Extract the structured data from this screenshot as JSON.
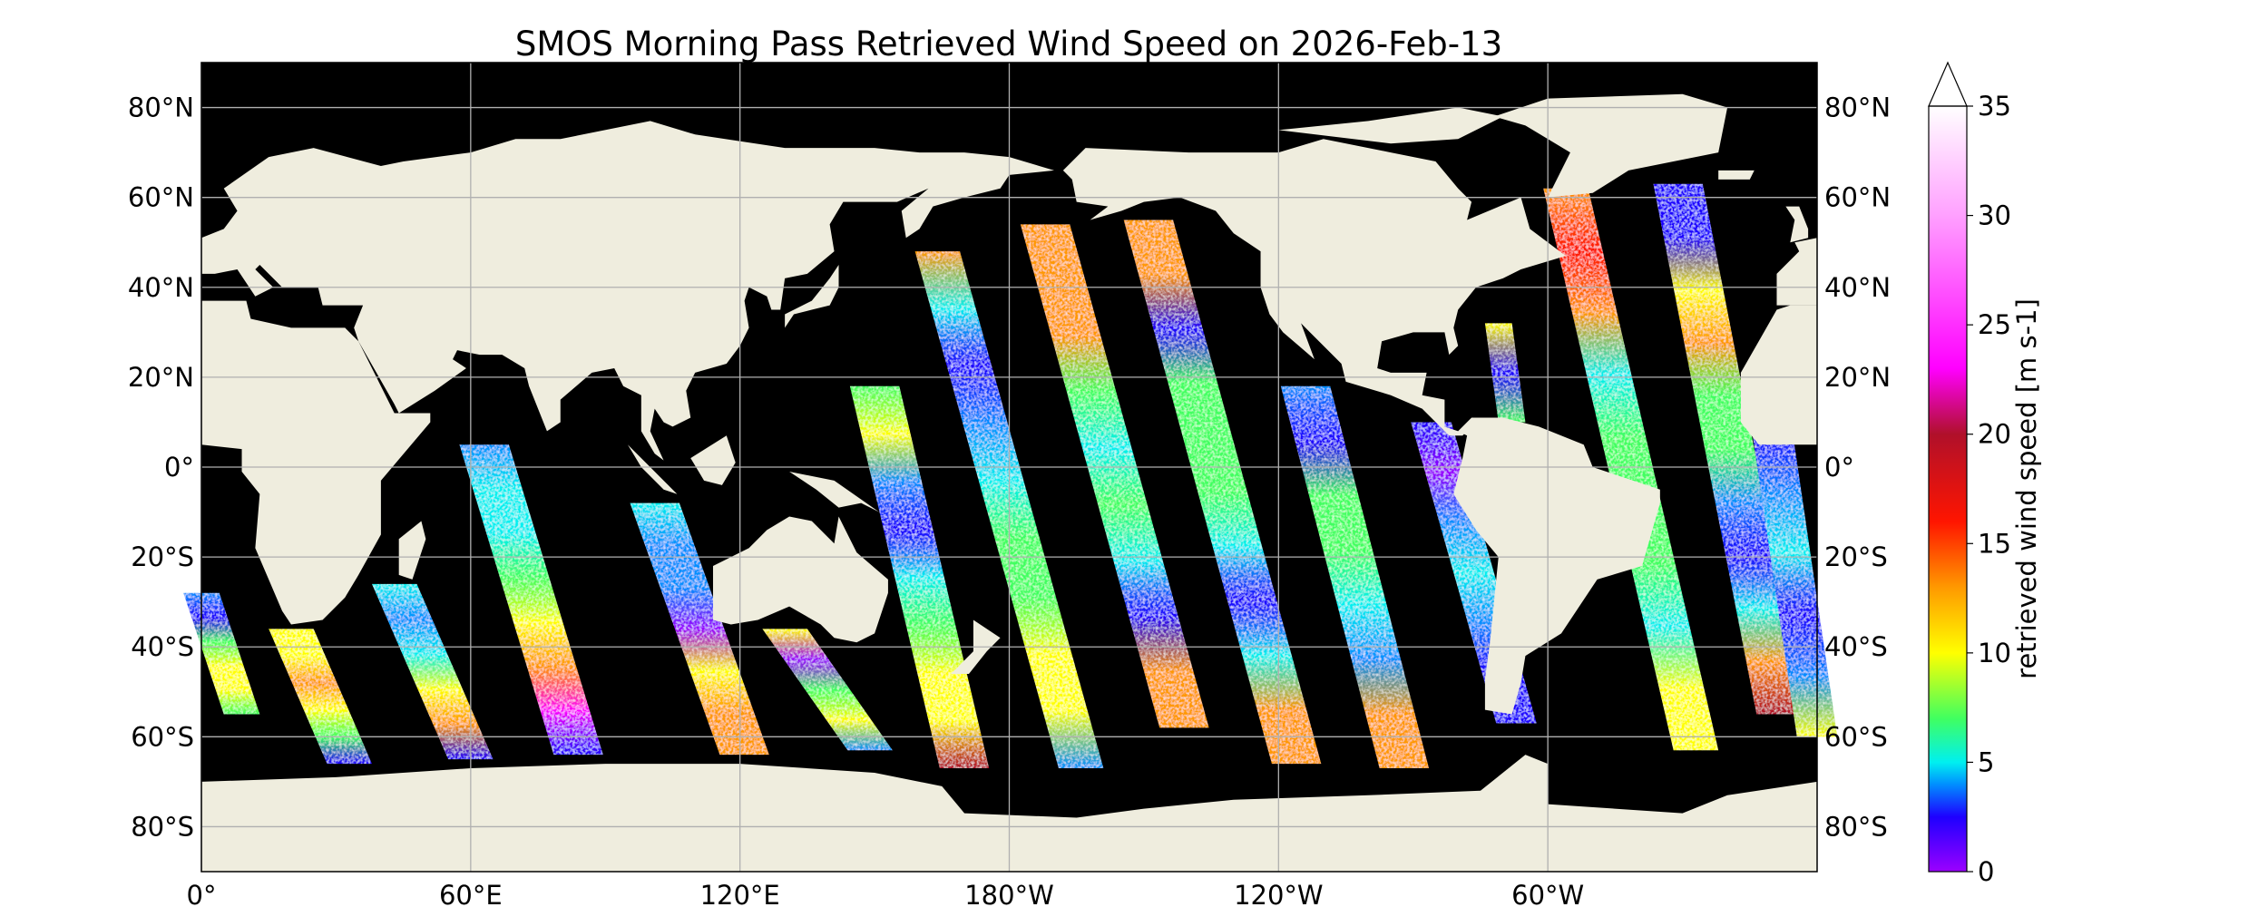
{
  "title": "SMOS Morning Pass Retrieved Wind Speed on 2026-Feb-13",
  "map": {
    "projection": "PlateCarree",
    "central_longitude": 180,
    "ocean_color": "#000000",
    "land_color": "#efedde",
    "grid_color": "#b0b0b0",
    "lat_ticks_left": [
      "80°N",
      "60°N",
      "40°N",
      "20°N",
      "0°",
      "20°S",
      "40°S",
      "60°S",
      "80°S"
    ],
    "lat_ticks_right": [
      "80°N",
      "60°N",
      "40°N",
      "20°N",
      "0°",
      "20°S",
      "40°S",
      "60°S",
      "80°S"
    ],
    "lat_values": [
      80,
      60,
      40,
      20,
      0,
      -20,
      -40,
      -60,
      -80
    ],
    "lon_ticks": [
      "0°",
      "60°E",
      "120°E",
      "180°W",
      "120°W",
      "60°W"
    ],
    "lon_values": [
      0,
      60,
      120,
      180,
      240,
      300
    ]
  },
  "colorbar": {
    "label": "retrieved wind speed [m s-1]",
    "ticks": [
      "0",
      "5",
      "10",
      "15",
      "20",
      "25",
      "30",
      "35"
    ],
    "tick_values": [
      0,
      5,
      10,
      15,
      20,
      25,
      30,
      35
    ],
    "range": [
      0,
      35
    ],
    "extend": "max",
    "colormap": [
      {
        "v": 0,
        "c": "#9b00ff"
      },
      {
        "v": 2.5,
        "c": "#1e00ff"
      },
      {
        "v": 4,
        "c": "#0090ff"
      },
      {
        "v": 5,
        "c": "#00f0f0"
      },
      {
        "v": 7,
        "c": "#40ff60"
      },
      {
        "v": 10,
        "c": "#ffff00"
      },
      {
        "v": 13,
        "c": "#ff9900"
      },
      {
        "v": 16,
        "c": "#ff1500"
      },
      {
        "v": 20,
        "c": "#b0102a"
      },
      {
        "v": 23,
        "c": "#ff00ff"
      },
      {
        "v": 30,
        "c": "#ffa0ff"
      },
      {
        "v": 35,
        "c": "#ffffff"
      }
    ]
  }
}
